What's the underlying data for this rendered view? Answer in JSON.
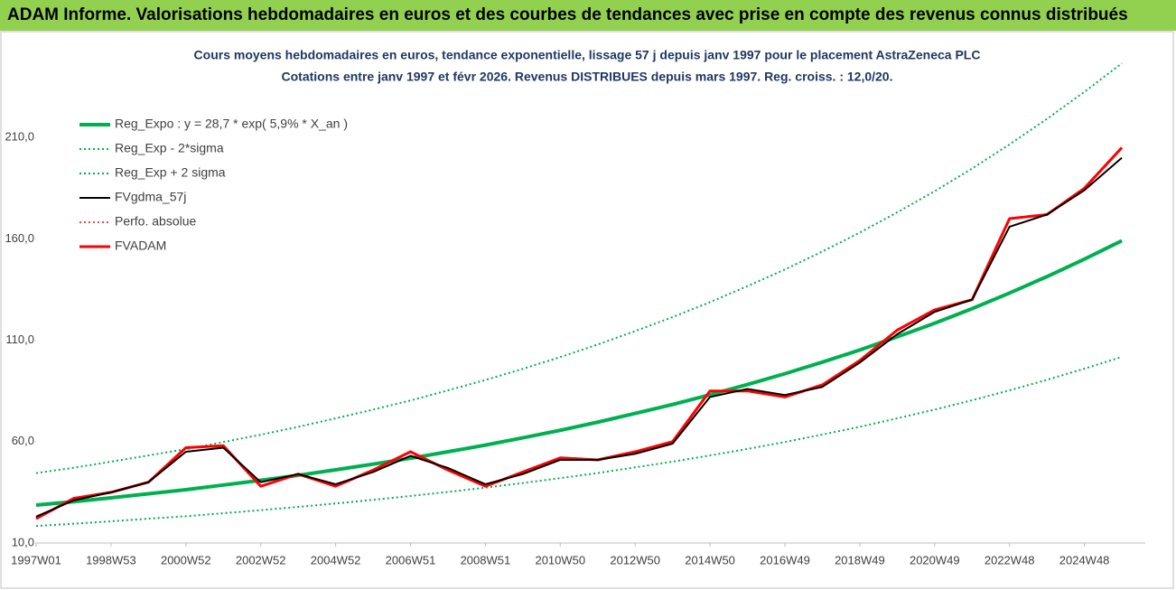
{
  "header": {
    "title": "ADAM Informe. Valorisations hebdomadaires en euros et des courbes de tendances avec prise en compte des revenus connus distribués"
  },
  "chart_data": {
    "type": "line",
    "title": "Cours moyens hebdomadaires en euros, tendance exponentielle, lissage 57 j depuis janv 1997 pour le placement AstraZeneca PLC",
    "subtitle": "Cotations entre janv 1997 et févr 2026. Revenus DISTRIBUES depuis mars 1997. Reg. croiss. : 12,0/20.",
    "categories": [
      "1997W01",
      null,
      "1998W53",
      null,
      "2000W52",
      null,
      "2002W52",
      null,
      "2004W52",
      null,
      "2006W51",
      null,
      "2008W51",
      null,
      "2010W50",
      null,
      "2012W50",
      null,
      "2014W50",
      null,
      "2016W49",
      null,
      "2018W49",
      null,
      "2020W49",
      null,
      "2022W48",
      null,
      "2024W48",
      null
    ],
    "ylim": [
      10,
      260
    ],
    "yticks": [
      {
        "value": 10,
        "label": "10,0"
      },
      {
        "value": 60,
        "label": "60,0"
      },
      {
        "value": 110,
        "label": "110,0"
      },
      {
        "value": 160,
        "label": "160,0"
      },
      {
        "value": 210,
        "label": "210,0"
      }
    ],
    "grid": false,
    "legend": "upper left",
    "series": [
      {
        "name": "Reg_Expo : y = 28,7 * exp( 5,9% *  X_an )",
        "color": "#00b050",
        "style": "solid",
        "width": 4,
        "values": [
          28.7,
          30.4,
          32.3,
          34.3,
          36.3,
          38.6,
          40.9,
          43.4,
          46.1,
          48.9,
          51.8,
          55.0,
          58.3,
          61.9,
          65.6,
          69.6,
          73.9,
          78.3,
          83.1,
          88.2,
          93.5,
          99.2,
          105.2,
          111.7,
          118.4,
          125.6,
          133.3,
          141.4,
          150.0,
          159.1
        ]
      },
      {
        "name": "Reg_Exp - 2*sigma",
        "color": "#00b050",
        "style": "dotted",
        "width": 2,
        "values": [
          18.4,
          19.5,
          20.7,
          22.0,
          23.2,
          24.7,
          26.2,
          27.8,
          29.5,
          31.3,
          33.2,
          35.2,
          37.3,
          39.6,
          42.0,
          44.5,
          47.3,
          50.1,
          53.2,
          56.4,
          59.8,
          63.5,
          67.3,
          71.5,
          75.8,
          80.4,
          85.3,
          90.5,
          96.0,
          101.8
        ]
      },
      {
        "name": "Reg_Exp + 2 sigma",
        "color": "#00b050",
        "style": "dotted",
        "width": 2,
        "values": [
          44.5,
          47.1,
          50.1,
          53.2,
          56.3,
          59.8,
          63.4,
          67.3,
          71.5,
          75.8,
          80.3,
          85.3,
          90.4,
          95.9,
          101.7,
          107.9,
          114.5,
          121.4,
          128.8,
          136.7,
          144.9,
          153.8,
          163.1,
          173.1,
          183.5,
          194.7,
          206.6,
          219.2,
          232.5,
          246.6
        ]
      },
      {
        "name": "FVgdma_57j",
        "color": "#000000",
        "style": "solid",
        "width": 2,
        "values": [
          23,
          31,
          35,
          40,
          55,
          57,
          40,
          44,
          39,
          45,
          53,
          47,
          39,
          44,
          51,
          51,
          54,
          59,
          82,
          86,
          83,
          87,
          99,
          113,
          124,
          130,
          166,
          172,
          184,
          200
        ]
      },
      {
        "name": "Perfo. absolue",
        "color": "#ff0000",
        "style": "dotted",
        "width": 1.5,
        "values": [
          22,
          32,
          35,
          40,
          57,
          58,
          38,
          44,
          38,
          46,
          55,
          46,
          38,
          45,
          52,
          51,
          55,
          60,
          85,
          85,
          82,
          88,
          100,
          115,
          125,
          130,
          170,
          172,
          185,
          205
        ]
      },
      {
        "name": "FVADAM",
        "color": "#ff0000",
        "style": "solid",
        "width": 3,
        "values": [
          22,
          32,
          35,
          40,
          57,
          58,
          38,
          44,
          38,
          46,
          55,
          46,
          38,
          45,
          52,
          51,
          55,
          60,
          85,
          85,
          82,
          88,
          100,
          115,
          125,
          130,
          170,
          172,
          185,
          205
        ]
      }
    ]
  }
}
